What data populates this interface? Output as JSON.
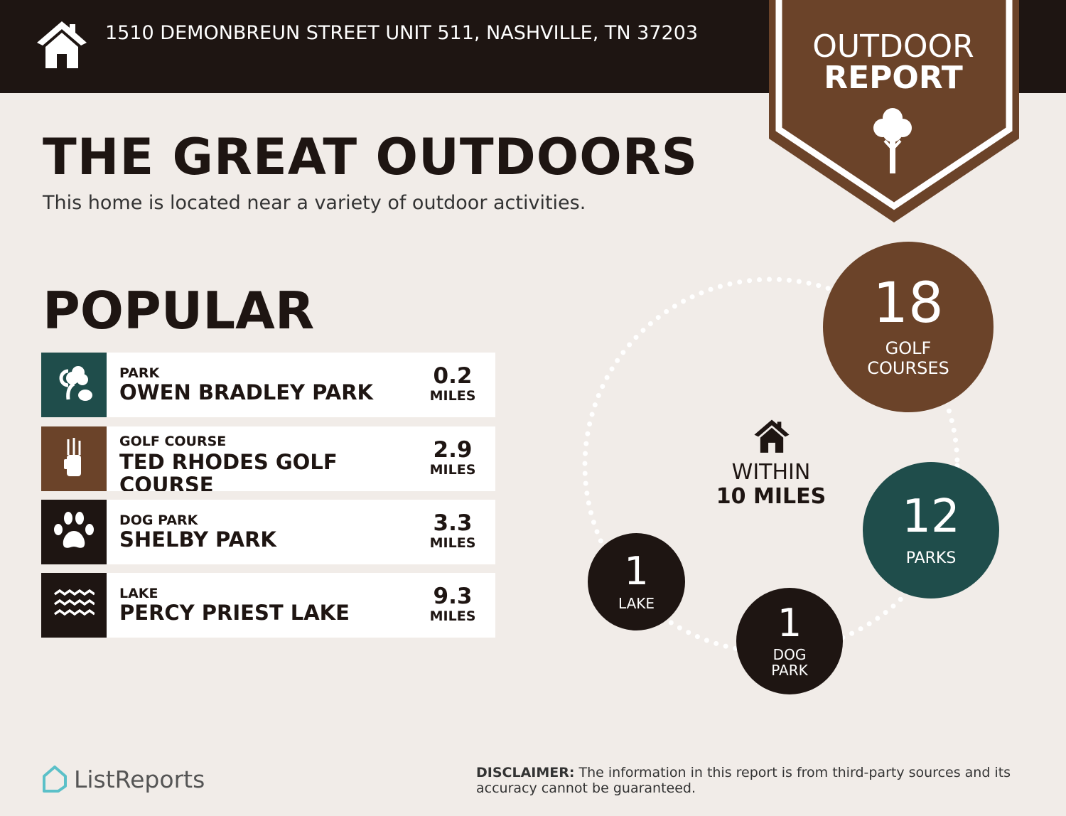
{
  "header": {
    "address": "1510 DEMONBREUN STREET UNIT 511, NASHVILLE, TN 37203",
    "badge_line1": "OUTDOOR",
    "badge_line2": "REPORT"
  },
  "main": {
    "title": "THE GREAT OUTDOORS",
    "subtitle": "This home is located near a variety of outdoor activities.",
    "popular_heading": "POPULAR"
  },
  "popular": [
    {
      "category": "PARK",
      "name": "OWEN BRADLEY PARK",
      "distance": "0.2",
      "unit": "MILES",
      "icon": "park-trees-icon",
      "color": "#1f4d4b"
    },
    {
      "category": "GOLF COURSE",
      "name": "TED RHODES GOLF COURSE",
      "distance": "2.9",
      "unit": "MILES",
      "icon": "golf-bag-icon",
      "color": "#6b4329"
    },
    {
      "category": "DOG PARK",
      "name": "SHELBY PARK",
      "distance": "3.3",
      "unit": "MILES",
      "icon": "paw-icon",
      "color": "#1e1512"
    },
    {
      "category": "LAKE",
      "name": "PERCY PRIEST LAKE",
      "distance": "9.3",
      "unit": "MILES",
      "icon": "waves-icon",
      "color": "#1e1512"
    }
  ],
  "summary": {
    "within_line1": "WITHIN",
    "within_line2": "10 MILES",
    "golf": {
      "count": "18",
      "label": "GOLF COURSES",
      "color": "#6b4329"
    },
    "parks": {
      "count": "12",
      "label": "PARKS",
      "color": "#1f4d4b"
    },
    "dog": {
      "count": "1",
      "label": "DOG PARK",
      "color": "#1e1512"
    },
    "lake": {
      "count": "1",
      "label": "LAKE",
      "color": "#1e1512"
    }
  },
  "footer": {
    "logo": "ListReports",
    "disclaimer_label": "DISCLAIMER:",
    "disclaimer_text": " The information in this report is from third-party sources and its accuracy cannot be guaranteed."
  }
}
